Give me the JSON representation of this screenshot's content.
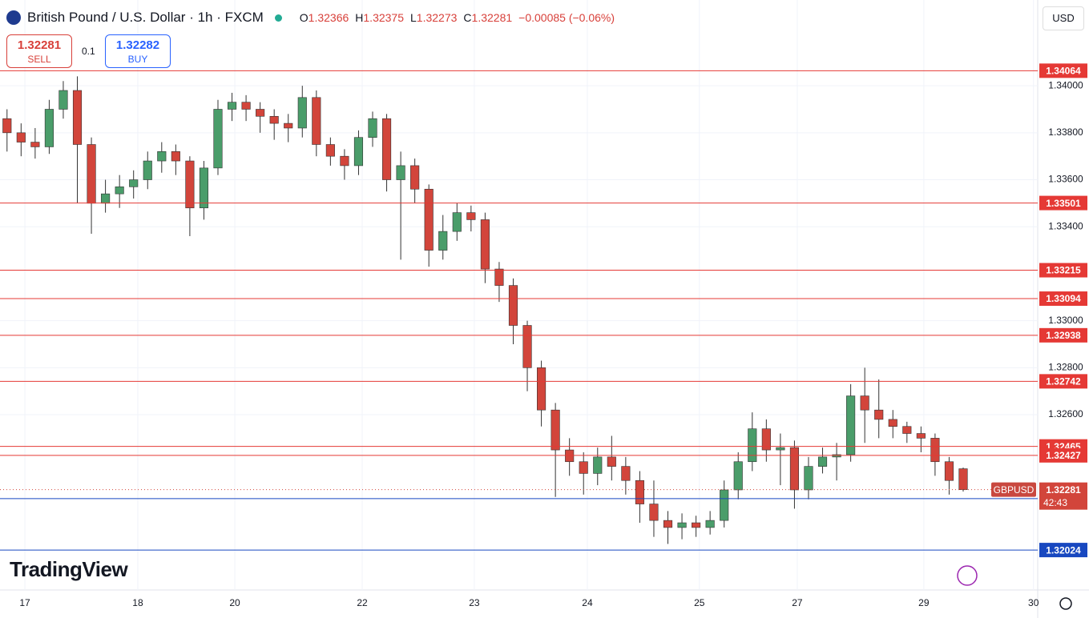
{
  "chart_data": {
    "type": "candlestick",
    "title": "British Pound / U.S. Dollar · 1h · FXCM",
    "xlim": [
      -0.5,
      73.3
    ],
    "xticks": [
      {
        "value": 1.27,
        "label": "17"
      },
      {
        "value": 9.3,
        "label": "18"
      },
      {
        "value": 16.2,
        "label": "20"
      },
      {
        "value": 25.26,
        "label": "22"
      },
      {
        "value": 33.23,
        "label": "23"
      },
      {
        "value": 41.27,
        "label": "24"
      },
      {
        "value": 49.24,
        "label": "25"
      },
      {
        "value": 56.2,
        "label": "27"
      },
      {
        "value": 65.2,
        "label": "29"
      },
      {
        "value": 73.0,
        "label": "30"
      }
    ],
    "ylim": [
      1.31854,
      1.34365
    ],
    "yticks": [
      {
        "value": 1.34,
        "label": "1.34000"
      },
      {
        "value": 1.338,
        "label": "1.33800"
      },
      {
        "value": 1.336,
        "label": "1.33600"
      },
      {
        "value": 1.334,
        "label": "1.33400"
      },
      {
        "value": 1.33,
        "label": "1.33000"
      },
      {
        "value": 1.328,
        "label": "1.32800"
      },
      {
        "value": 1.326,
        "label": "1.32600"
      }
    ],
    "grid": true,
    "up_color": "#4a9d6a",
    "down_color": "#d2453b",
    "open": [
      1.3386,
      1.338,
      1.3376,
      1.3374,
      1.339,
      1.3398,
      1.3375,
      1.335,
      1.3354,
      1.3357,
      1.336,
      1.3368,
      1.3372,
      1.3368,
      1.3348,
      1.3365,
      1.339,
      1.3393,
      1.339,
      1.3387,
      1.3384,
      1.3382,
      1.3395,
      1.3375,
      1.337,
      1.3366,
      1.3378,
      1.3386,
      1.336,
      1.3366,
      1.3356,
      1.333,
      1.3338,
      1.3346,
      1.3343,
      1.3322,
      1.3315,
      1.3298,
      1.328,
      1.3262,
      1.3245,
      1.324,
      1.3235,
      1.3242,
      1.3238,
      1.3232,
      1.3222,
      1.3215,
      1.3212,
      1.3214,
      1.3212,
      1.3215,
      1.3228,
      1.324,
      1.3254,
      1.3245,
      1.3246,
      1.3228,
      1.3238,
      1.3242,
      1.3243,
      1.3268,
      1.3262,
      1.3258,
      1.3255,
      1.3252,
      1.325,
      1.324,
      1.3237
    ],
    "high": [
      1.339,
      1.3384,
      1.3382,
      1.3394,
      1.3402,
      1.3404,
      1.3378,
      1.336,
      1.3362,
      1.3364,
      1.3372,
      1.3376,
      1.3375,
      1.337,
      1.3368,
      1.3394,
      1.3397,
      1.3396,
      1.3393,
      1.339,
      1.3388,
      1.34,
      1.3398,
      1.3378,
      1.3373,
      1.3381,
      1.3389,
      1.3388,
      1.3372,
      1.3369,
      1.3358,
      1.3345,
      1.335,
      1.3349,
      1.3346,
      1.3325,
      1.3318,
      1.33,
      1.3283,
      1.3265,
      1.325,
      1.3244,
      1.3246,
      1.3251,
      1.3242,
      1.3236,
      1.3232,
      1.3219,
      1.3218,
      1.3217,
      1.3219,
      1.3232,
      1.3244,
      1.3261,
      1.3258,
      1.3252,
      1.3249,
      1.3242,
      1.3246,
      1.3248,
      1.3273,
      1.328,
      1.3275,
      1.3262,
      1.3257,
      1.3255,
      1.3252,
      1.3242,
      1.32375
    ],
    "low": [
      1.3372,
      1.337,
      1.3369,
      1.3371,
      1.3386,
      1.335,
      1.3337,
      1.3346,
      1.3348,
      1.3352,
      1.3356,
      1.3363,
      1.3362,
      1.3336,
      1.3343,
      1.3362,
      1.3385,
      1.3385,
      1.338,
      1.3377,
      1.3376,
      1.3378,
      1.337,
      1.3366,
      1.336,
      1.3362,
      1.3374,
      1.3355,
      1.3326,
      1.335,
      1.3323,
      1.3326,
      1.3334,
      1.3338,
      1.3316,
      1.3308,
      1.329,
      1.327,
      1.3255,
      1.3225,
      1.3234,
      1.3226,
      1.323,
      1.3232,
      1.3226,
      1.3214,
      1.3208,
      1.3205,
      1.3207,
      1.3208,
      1.3209,
      1.3212,
      1.3224,
      1.3236,
      1.324,
      1.323,
      1.322,
      1.3224,
      1.3235,
      1.3232,
      1.324,
      1.3248,
      1.325,
      1.325,
      1.3248,
      1.3244,
      1.3234,
      1.3226,
      1.32273
    ],
    "close": [
      1.338,
      1.3376,
      1.3374,
      1.339,
      1.3398,
      1.3375,
      1.335,
      1.3354,
      1.3357,
      1.336,
      1.3368,
      1.3372,
      1.3368,
      1.3348,
      1.3365,
      1.339,
      1.3393,
      1.339,
      1.3387,
      1.3384,
      1.3382,
      1.3395,
      1.3375,
      1.337,
      1.3366,
      1.3378,
      1.3386,
      1.336,
      1.3366,
      1.3356,
      1.333,
      1.3338,
      1.3346,
      1.3343,
      1.3322,
      1.3315,
      1.3298,
      1.328,
      1.3262,
      1.3245,
      1.324,
      1.3235,
      1.3242,
      1.3238,
      1.3232,
      1.3222,
      1.3215,
      1.3212,
      1.3214,
      1.3212,
      1.3215,
      1.3228,
      1.324,
      1.3254,
      1.3245,
      1.3246,
      1.3228,
      1.3238,
      1.3242,
      1.3243,
      1.3268,
      1.3262,
      1.3258,
      1.3255,
      1.3252,
      1.325,
      1.324,
      1.3232,
      1.32281
    ],
    "levels": [
      {
        "value": 1.34064,
        "color": "#e53935"
      },
      {
        "value": 1.33501,
        "color": "#e53935"
      },
      {
        "value": 1.33215,
        "color": "#e53935"
      },
      {
        "value": 1.33094,
        "color": "#e53935"
      },
      {
        "value": 1.32938,
        "color": "#e53935"
      },
      {
        "value": 1.32742,
        "color": "#e53935"
      },
      {
        "value": 1.32465,
        "color": "#e53935"
      },
      {
        "value": 1.32427,
        "color": "#e53935"
      },
      {
        "value": 1.32243,
        "color": "#1848c0"
      },
      {
        "value": 1.32024,
        "color": "#1848c0"
      }
    ],
    "current_price": 1.32281,
    "symbol_tag": "GBPUSD",
    "countdown": "42:43"
  },
  "header": {
    "ohlc": [
      {
        "k": "O",
        "v": "1.32366"
      },
      {
        "k": "H",
        "v": "1.32375"
      },
      {
        "k": "L",
        "v": "1.32273"
      },
      {
        "k": "C",
        "v": "1.32281"
      }
    ],
    "change": "−0.00085 (−0.06%)",
    "currency": "USD"
  },
  "trade": {
    "sell_price": "1.32281",
    "sell": "SELL",
    "quantity": "0.1",
    "buy_price": "1.32282",
    "buy": "BUY"
  },
  "logo": "TradingView"
}
